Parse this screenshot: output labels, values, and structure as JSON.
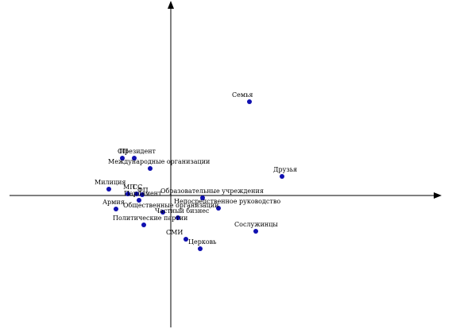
{
  "chart_data": {
    "type": "scatter",
    "title": "",
    "xlabel": "",
    "ylabel": "",
    "axis_ticks": false,
    "grid": false,
    "xlim": [
      -1.0,
      1.56
    ],
    "ylim": [
      -0.96,
      1.24
    ],
    "point_color": "#1010b0",
    "points": [
      {
        "label": "Семья",
        "x": 0.99,
        "y": 1.18
      },
      {
        "label": "ОП",
        "x": -0.61,
        "y": 0.47
      },
      {
        "label": "Президент",
        "x": -0.46,
        "y": 0.47
      },
      {
        "label": "Международные организации",
        "x": -0.26,
        "y": 0.34
      },
      {
        "label": "Друзья",
        "x": 1.4,
        "y": 0.24
      },
      {
        "label": "Милиция",
        "x": -0.78,
        "y": 0.08
      },
      {
        "label": "МП",
        "x": -0.54,
        "y": 0.02
      },
      {
        "label": "СС",
        "x": -0.43,
        "y": 0.02
      },
      {
        "label": "ФП",
        "x": -0.36,
        "y": 0.01
      },
      {
        "label": "Парламент",
        "x": -0.4,
        "y": -0.06
      },
      {
        "label": "Образовательные учреждения",
        "x": 0.4,
        "y": -0.03
      },
      {
        "label": "Армия",
        "x": -0.69,
        "y": -0.17
      },
      {
        "label": "Непосредственное руководство",
        "x": 0.6,
        "y": -0.16
      },
      {
        "label": "Общественные организации",
        "x": -0.1,
        "y": -0.21
      },
      {
        "label": "Частный бизнес",
        "x": 0.09,
        "y": -0.28
      },
      {
        "label": "Политические партии",
        "x": -0.34,
        "y": -0.37
      },
      {
        "label": "Сослужинцы",
        "x": 1.07,
        "y": -0.45
      },
      {
        "label": "СМИ",
        "x": 0.19,
        "y": -0.55
      },
      {
        "label": "Церковь",
        "x": 0.37,
        "y": -0.67
      }
    ]
  }
}
